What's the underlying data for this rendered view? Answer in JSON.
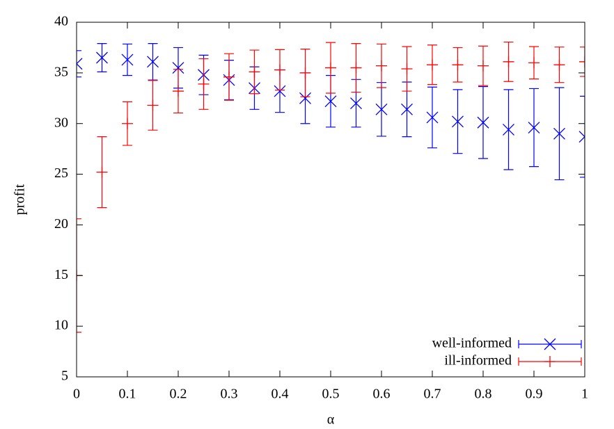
{
  "chart_data": {
    "type": "errorbar",
    "x": [
      0,
      0.05,
      0.1,
      0.15,
      0.2,
      0.25,
      0.3,
      0.35,
      0.4,
      0.45,
      0.5,
      0.55,
      0.6,
      0.65,
      0.7,
      0.75,
      0.8,
      0.85,
      0.9,
      0.95,
      1
    ],
    "xlabel": "α",
    "ylabel": "profit",
    "xlim": [
      0,
      1
    ],
    "ylim": [
      5,
      40
    ],
    "xticks": [
      0,
      0.1,
      0.2,
      0.3,
      0.4,
      0.5,
      0.6,
      0.7,
      0.8,
      0.9,
      1
    ],
    "yticks": [
      5,
      10,
      15,
      20,
      25,
      30,
      35,
      40
    ],
    "legend": "lower right",
    "series": [
      {
        "name": "well-informed",
        "color": "#0000ff",
        "marker": "x",
        "values": [
          35.9,
          36.5,
          36.3,
          36.1,
          35.5,
          34.8,
          34.3,
          33.5,
          33.2,
          32.5,
          32.2,
          32.0,
          31.4,
          31.4,
          30.6,
          30.2,
          30.1,
          29.4,
          29.6,
          29.0,
          28.7
        ],
        "errors": [
          1.3,
          1.4,
          1.55,
          1.8,
          2.0,
          1.95,
          1.95,
          2.1,
          2.1,
          2.5,
          2.55,
          2.35,
          2.65,
          2.7,
          3.0,
          3.15,
          3.55,
          3.95,
          3.85,
          4.55,
          4.0
        ]
      },
      {
        "name": "ill-informed",
        "color": "#ff0000",
        "marker": "+",
        "values": [
          15.0,
          25.2,
          30.0,
          31.8,
          33.2,
          33.9,
          34.6,
          35.1,
          35.3,
          35.0,
          35.5,
          35.5,
          35.7,
          35.4,
          35.8,
          35.8,
          35.7,
          36.1,
          36.0,
          35.8,
          36.1
        ],
        "errors": [
          5.6,
          3.5,
          2.15,
          2.45,
          2.15,
          2.5,
          2.3,
          2.15,
          2.0,
          2.35,
          2.5,
          2.4,
          2.15,
          2.2,
          1.95,
          1.7,
          1.95,
          1.95,
          1.6,
          1.75,
          1.45
        ]
      }
    ]
  }
}
